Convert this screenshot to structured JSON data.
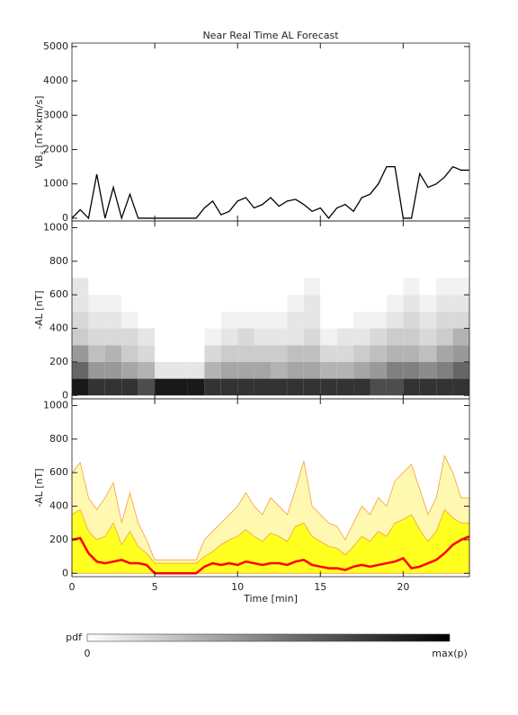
{
  "chart_data": [
    {
      "type": "line",
      "title": "Near Real Time AL Forecast",
      "ylabel": {
        "main": "VB",
        "sub": "s",
        "rest": " [nT×km/s]"
      },
      "xlim": [
        0,
        24
      ],
      "ylim": [
        -80,
        5100
      ],
      "yticks": [
        0,
        1000,
        2000,
        3000,
        4000,
        5000
      ],
      "x": [
        0,
        0.5,
        1,
        1.5,
        2,
        2.5,
        3,
        3.5,
        4,
        4.5,
        5,
        5.5,
        6,
        6.5,
        7,
        7.5,
        8,
        8.5,
        9,
        9.5,
        10,
        10.5,
        11,
        11.5,
        12,
        12.5,
        13,
        13.5,
        14,
        14.5,
        15,
        15.5,
        16,
        16.5,
        17,
        17.5,
        18,
        18.5,
        19,
        19.5,
        20,
        20.5,
        21,
        21.5,
        22,
        22.5,
        23,
        23.5,
        24
      ],
      "series": [
        {
          "color": "#000000",
          "values": [
            0,
            250,
            0,
            1280,
            0,
            900,
            0,
            700,
            0,
            0,
            0,
            0,
            0,
            0,
            0,
            0,
            300,
            500,
            100,
            200,
            500,
            600,
            300,
            400,
            600,
            350,
            500,
            550,
            400,
            200,
            300,
            0,
            300,
            400,
            200,
            600,
            700,
            1000,
            1500,
            1500,
            0,
            0,
            1300,
            900,
            1000,
            1200,
            1500,
            1400,
            1400
          ]
        }
      ]
    },
    {
      "type": "heatmap",
      "ylabel": "-AL [nT]",
      "xlim": [
        0,
        24
      ],
      "ylim": [
        -20,
        1040
      ],
      "yticks": [
        0,
        200,
        400,
        600,
        800,
        1000
      ],
      "x_bins": [
        0,
        1,
        2,
        3,
        4,
        5,
        6,
        7,
        8,
        9,
        10,
        11,
        12,
        13,
        14,
        15,
        16,
        17,
        18,
        19,
        20,
        21,
        22,
        23,
        24
      ],
      "y_bins": [
        0,
        100,
        200,
        300,
        400,
        500,
        600,
        700
      ],
      "z": [
        [
          0.9,
          0.6,
          0.4,
          0.2,
          0.15,
          0.1,
          0.1
        ],
        [
          0.8,
          0.4,
          0.25,
          0.15,
          0.1,
          0.05,
          0
        ],
        [
          0.8,
          0.4,
          0.3,
          0.15,
          0.1,
          0.05,
          0
        ],
        [
          0.8,
          0.35,
          0.2,
          0.15,
          0.05,
          0,
          0
        ],
        [
          0.7,
          0.3,
          0.15,
          0.1,
          0,
          0,
          0
        ],
        [
          0.9,
          0.1,
          0,
          0,
          0,
          0,
          0
        ],
        [
          0.9,
          0.1,
          0,
          0,
          0,
          0,
          0
        ],
        [
          0.9,
          0.1,
          0,
          0,
          0,
          0,
          0
        ],
        [
          0.8,
          0.3,
          0.15,
          0.05,
          0,
          0,
          0
        ],
        [
          0.8,
          0.35,
          0.2,
          0.1,
          0.05,
          0,
          0
        ],
        [
          0.8,
          0.35,
          0.2,
          0.15,
          0.05,
          0,
          0
        ],
        [
          0.8,
          0.35,
          0.2,
          0.1,
          0.05,
          0,
          0
        ],
        [
          0.8,
          0.3,
          0.2,
          0.1,
          0.05,
          0,
          0
        ],
        [
          0.8,
          0.35,
          0.25,
          0.1,
          0.1,
          0.05,
          0
        ],
        [
          0.8,
          0.35,
          0.25,
          0.15,
          0.1,
          0.1,
          0.05
        ],
        [
          0.8,
          0.3,
          0.15,
          0.05,
          0,
          0,
          0
        ],
        [
          0.8,
          0.3,
          0.15,
          0.1,
          0,
          0,
          0
        ],
        [
          0.8,
          0.35,
          0.2,
          0.1,
          0.05,
          0,
          0
        ],
        [
          0.7,
          0.4,
          0.25,
          0.15,
          0.05,
          0,
          0
        ],
        [
          0.7,
          0.5,
          0.3,
          0.2,
          0.1,
          0.05,
          0
        ],
        [
          0.8,
          0.5,
          0.3,
          0.2,
          0.15,
          0.1,
          0.05
        ],
        [
          0.8,
          0.45,
          0.25,
          0.15,
          0.1,
          0.05,
          0
        ],
        [
          0.8,
          0.5,
          0.35,
          0.2,
          0.15,
          0.1,
          0.05
        ],
        [
          0.8,
          0.6,
          0.4,
          0.3,
          0.15,
          0.1,
          0.05
        ]
      ],
      "colorbar": {
        "title": "pdf",
        "min_label": "0",
        "max_label": "max(p)"
      }
    },
    {
      "type": "area",
      "ylabel": "-AL [nT]",
      "xlabel": "Time [min]",
      "xlim": [
        0,
        24
      ],
      "ylim": [
        -20,
        1040
      ],
      "yticks": [
        0,
        200,
        400,
        600,
        800,
        1000
      ],
      "xticks": [
        0,
        5,
        10,
        15,
        20
      ],
      "x": [
        0,
        0.5,
        1,
        1.5,
        2,
        2.5,
        3,
        3.5,
        4,
        4.5,
        5,
        5.5,
        6,
        6.5,
        7,
        7.5,
        8,
        8.5,
        9,
        9.5,
        10,
        10.5,
        11,
        11.5,
        12,
        12.5,
        13,
        13.5,
        14,
        14.5,
        15,
        15.5,
        16,
        16.5,
        17,
        17.5,
        18,
        18.5,
        19,
        19.5,
        20,
        20.5,
        21,
        21.5,
        22,
        22.5,
        23,
        23.5,
        24
      ],
      "series": [
        {
          "color": "#fff8b0",
          "stroke": "#f4a040",
          "values": [
            600,
            660,
            450,
            380,
            450,
            540,
            300,
            480,
            300,
            200,
            80,
            80,
            80,
            80,
            80,
            80,
            200,
            250,
            300,
            350,
            400,
            480,
            400,
            350,
            450,
            400,
            350,
            500,
            670,
            400,
            350,
            300,
            280,
            200,
            300,
            400,
            350,
            450,
            400,
            550,
            600,
            650,
            500,
            350,
            450,
            700,
            600,
            450,
            450
          ]
        },
        {
          "color": "#ffff20",
          "stroke": "#f4a040",
          "values": [
            350,
            380,
            250,
            200,
            220,
            300,
            170,
            250,
            160,
            120,
            60,
            60,
            60,
            60,
            60,
            60,
            100,
            130,
            170,
            200,
            220,
            260,
            220,
            190,
            240,
            220,
            190,
            280,
            300,
            220,
            190,
            160,
            150,
            110,
            160,
            220,
            190,
            250,
            220,
            300,
            320,
            350,
            260,
            190,
            250,
            380,
            330,
            300,
            300
          ]
        },
        {
          "color": "#ff0000",
          "line": true,
          "values": [
            200,
            210,
            120,
            70,
            60,
            70,
            80,
            60,
            60,
            50,
            0,
            0,
            0,
            0,
            0,
            0,
            40,
            60,
            50,
            60,
            50,
            70,
            60,
            50,
            60,
            60,
            50,
            70,
            80,
            50,
            40,
            30,
            30,
            20,
            40,
            50,
            40,
            50,
            60,
            70,
            90,
            30,
            40,
            60,
            80,
            120,
            170,
            200,
            220
          ]
        }
      ]
    }
  ]
}
